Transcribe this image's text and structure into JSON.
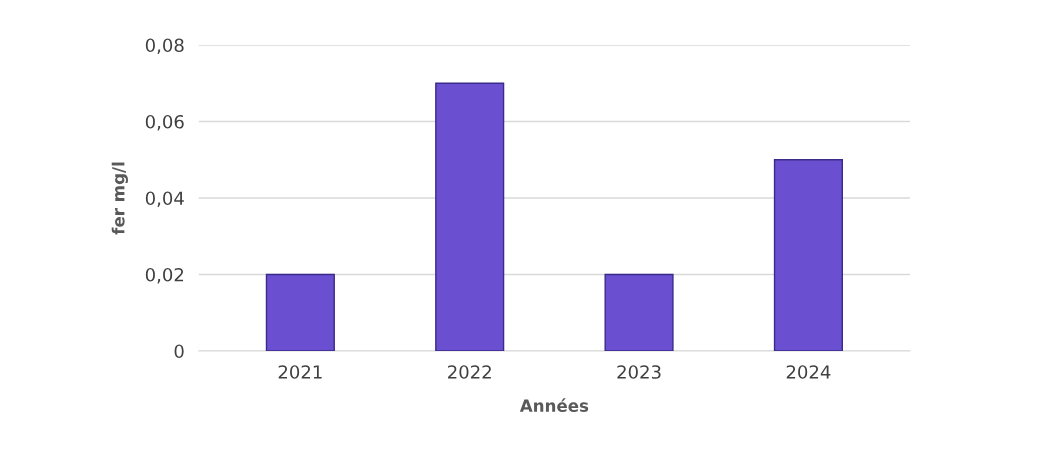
{
  "chart_data": {
    "type": "bar",
    "xlabel": "Années",
    "ylabel": "fer mg/l",
    "categories": [
      "2021",
      "2022",
      "2023",
      "2024"
    ],
    "values": [
      0.02,
      0.07,
      0.02,
      0.05
    ],
    "color": "#6a50d0",
    "ylim": [
      0,
      0.08
    ],
    "yticks": [
      0,
      {
        "value": 0.02,
        "label": "0,02"
      },
      {
        "value": 0.04,
        "label": "0,04"
      },
      {
        "value": 0.06,
        "label": "0,06"
      },
      {
        "value": 0.08,
        "label": "0,08"
      }
    ],
    "grid": "y"
  }
}
